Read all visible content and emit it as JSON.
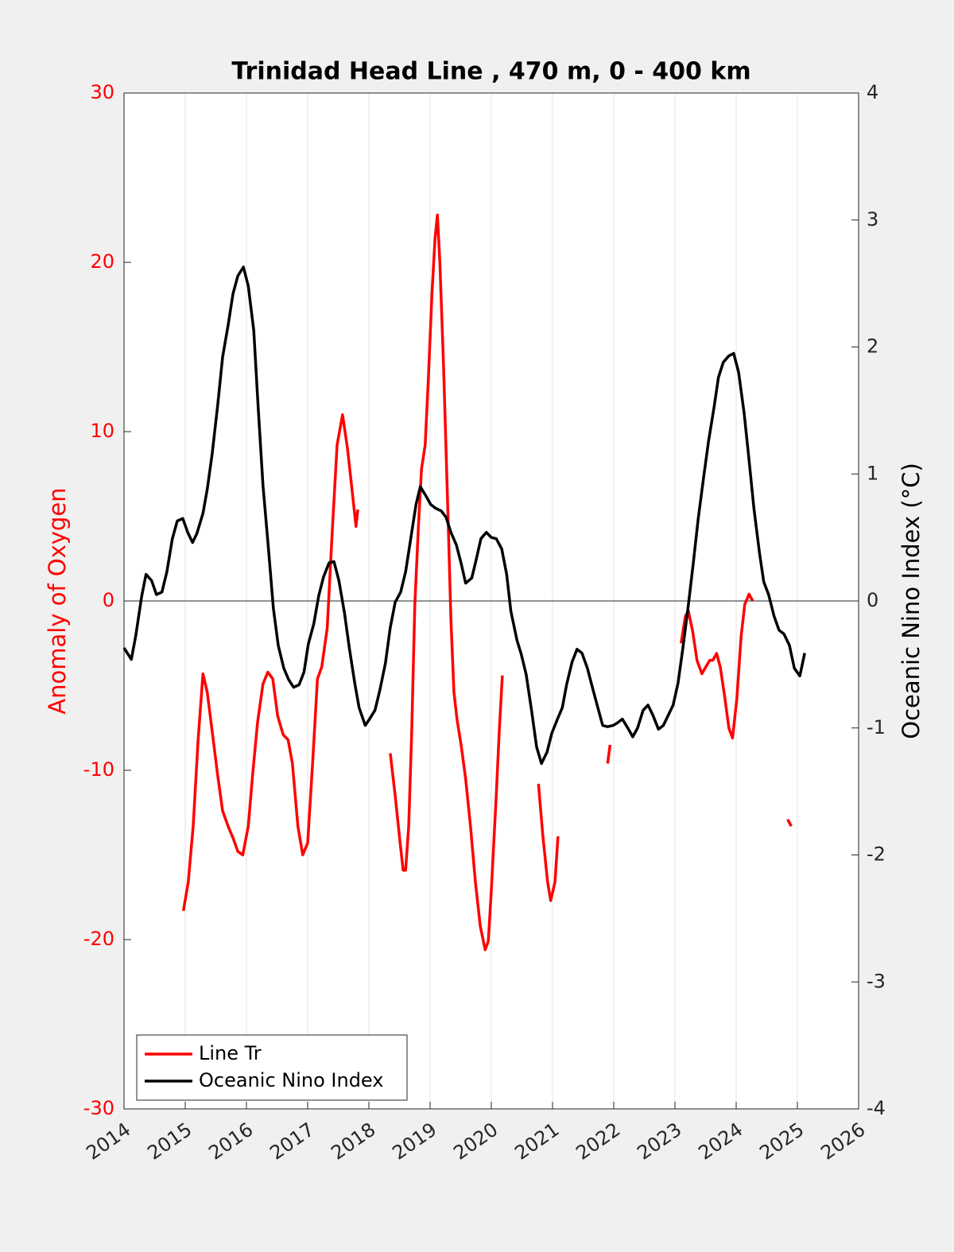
{
  "chart_data": {
    "type": "line",
    "title": "Trinidad Head Line , 470 m, 0 - 400 km",
    "ylabel": "Anomaly of Oxygen",
    "y2label": "Oceanic Nino Index (°C)",
    "xlim": [
      2014,
      2026
    ],
    "xticks": [
      2014,
      2015,
      2016,
      2017,
      2018,
      2019,
      2020,
      2021,
      2022,
      2023,
      2024,
      2025,
      2026
    ],
    "ylim": [
      -30,
      30
    ],
    "yticks": [
      -30,
      -20,
      -10,
      0,
      10,
      20,
      30
    ],
    "y2lim": [
      -4,
      4
    ],
    "y2ticks": [
      -4,
      -3,
      -2,
      -1,
      0,
      1,
      2,
      3,
      4
    ],
    "grid": true,
    "legend": "lower left",
    "series": [
      {
        "name": "Line Tr",
        "color": "#ff0000",
        "x": [
          2014.97,
          2015.05,
          2015.13,
          2015.21,
          2015.29,
          2015.36,
          2015.44,
          2015.53,
          2015.61,
          2015.7,
          2015.78,
          2015.86,
          2015.94,
          2016.03,
          2016.1,
          2016.18,
          2016.27,
          2016.35,
          2016.43,
          2016.51,
          2016.6,
          2016.68,
          2016.75,
          2016.84,
          2016.92,
          2017.0,
          2017.08,
          2017.16,
          2017.23,
          2017.32,
          2017.4,
          2017.48,
          2017.57,
          2017.65,
          2017.73,
          2017.79,
          2017.82,
          null,
          2018.35,
          2018.43,
          2018.51,
          2018.56,
          2018.6,
          2018.65,
          2018.7,
          2018.75,
          2018.81,
          2018.86,
          2018.92,
          2018.97,
          2019.03,
          2019.08,
          2019.12,
          2019.16,
          2019.22,
          2019.29,
          2019.34,
          2019.39,
          2019.44,
          2019.51,
          2019.58,
          2019.66,
          2019.74,
          2019.82,
          2019.9,
          2019.95,
          2020.0,
          2020.08,
          2020.13,
          2020.18,
          null,
          2020.77,
          2020.84,
          2020.92,
          2020.97,
          2021.04,
          2021.09,
          null,
          2021.9,
          2021.94,
          null,
          2023.1,
          2023.17,
          2023.22,
          2023.29,
          2023.36,
          2023.44,
          2023.52,
          2023.57,
          2023.62,
          2023.68,
          2023.74,
          2023.81,
          2023.88,
          2023.94,
          2024.01,
          2024.08,
          2024.14,
          2024.21,
          2024.27,
          null,
          2024.84,
          2024.9
        ],
        "values": [
          -18.3,
          -16.6,
          -13.3,
          -8.2,
          -4.3,
          -5.4,
          -7.7,
          -10.3,
          -12.4,
          -13.3,
          -14.0,
          -14.8,
          -15.0,
          -13.3,
          -10.3,
          -7.2,
          -4.9,
          -4.2,
          -4.6,
          -6.8,
          -7.9,
          -8.2,
          -9.6,
          -13.3,
          -15.0,
          -14.3,
          -9.6,
          -4.6,
          -3.9,
          -1.6,
          4.0,
          9.2,
          11.0,
          9.0,
          6.4,
          4.4,
          5.4,
          null,
          -9.0,
          -11.5,
          -14.3,
          -15.9,
          -15.9,
          -13.3,
          -7.7,
          -0.2,
          4.5,
          7.8,
          9.2,
          13.0,
          18.1,
          21.4,
          22.8,
          20.0,
          13.9,
          5.4,
          -1.1,
          -5.4,
          -7.0,
          -8.6,
          -10.5,
          -13.3,
          -16.6,
          -19.2,
          -20.6,
          -20.1,
          -17.1,
          -11.5,
          -7.7,
          -4.4,
          null,
          -10.8,
          -13.8,
          -16.6,
          -17.7,
          -16.6,
          -13.9,
          null,
          -9.6,
          -8.5,
          null,
          -2.5,
          -0.9,
          -0.6,
          -1.8,
          -3.5,
          -4.3,
          -3.8,
          -3.5,
          -3.5,
          -3.1,
          -3.9,
          -5.6,
          -7.5,
          -8.1,
          -5.8,
          -2.1,
          -0.2,
          0.4,
          0.0,
          null,
          -12.9,
          -13.3
        ]
      },
      {
        "name": "Oceanic Nino Index",
        "color": "#000000",
        "axis": "y2",
        "x": [
          2014.0,
          2014.12,
          2014.19,
          2014.29,
          2014.36,
          2014.45,
          2014.53,
          2014.62,
          2014.7,
          2014.79,
          2014.87,
          2014.96,
          2015.04,
          2015.12,
          2015.19,
          2015.29,
          2015.36,
          2015.44,
          2015.53,
          2015.61,
          2015.7,
          2015.78,
          2015.86,
          2015.95,
          2016.03,
          2016.12,
          2016.19,
          2016.27,
          2016.36,
          2016.44,
          2016.52,
          2016.61,
          2016.69,
          2016.77,
          2016.86,
          2016.94,
          2017.01,
          2017.1,
          2017.18,
          2017.26,
          2017.35,
          2017.43,
          2017.51,
          2017.6,
          2017.68,
          2017.77,
          2017.84,
          2017.94,
          2018.01,
          2018.1,
          2018.18,
          2018.27,
          2018.35,
          2018.43,
          2018.52,
          2018.6,
          2018.68,
          2018.77,
          2018.84,
          2018.94,
          2019.01,
          2019.09,
          2019.18,
          2019.26,
          2019.34,
          2019.43,
          2019.51,
          2019.58,
          2019.68,
          2019.75,
          2019.83,
          2019.92,
          2020.0,
          2020.08,
          2020.17,
          2020.25,
          2020.32,
          2020.42,
          2020.49,
          2020.57,
          2020.66,
          2020.74,
          2020.82,
          2020.91,
          2020.99,
          2021.08,
          2021.16,
          2021.23,
          2021.32,
          2021.4,
          2021.48,
          2021.57,
          2021.65,
          2021.74,
          2021.82,
          2021.9,
          2021.99,
          2022.06,
          2022.14,
          2022.23,
          2022.31,
          2022.39,
          2022.48,
          2022.56,
          2022.64,
          2022.73,
          2022.81,
          2022.88,
          2022.97,
          2023.05,
          2023.13,
          2023.22,
          2023.3,
          2023.38,
          2023.47,
          2023.55,
          2023.64,
          2023.71,
          2023.79,
          2023.88,
          2023.96,
          2024.04,
          2024.13,
          2024.21,
          2024.29,
          2024.38,
          2024.45,
          2024.53,
          2024.62,
          2024.7,
          2024.78,
          2024.87,
          2024.95,
          2025.04,
          2025.12
        ],
        "values": [
          -0.37,
          -0.46,
          -0.28,
          0.04,
          0.21,
          0.16,
          0.05,
          0.07,
          0.23,
          0.49,
          0.63,
          0.65,
          0.54,
          0.46,
          0.53,
          0.69,
          0.88,
          1.16,
          1.54,
          1.92,
          2.17,
          2.42,
          2.56,
          2.63,
          2.48,
          2.13,
          1.54,
          0.91,
          0.41,
          -0.06,
          -0.35,
          -0.53,
          -0.62,
          -0.68,
          -0.66,
          -0.56,
          -0.34,
          -0.18,
          0.04,
          0.19,
          0.3,
          0.31,
          0.16,
          -0.09,
          -0.37,
          -0.65,
          -0.84,
          -0.98,
          -0.93,
          -0.86,
          -0.7,
          -0.49,
          -0.21,
          -0.01,
          0.07,
          0.23,
          0.48,
          0.76,
          0.9,
          0.82,
          0.76,
          0.73,
          0.71,
          0.66,
          0.54,
          0.44,
          0.29,
          0.14,
          0.18,
          0.32,
          0.49,
          0.54,
          0.5,
          0.49,
          0.41,
          0.21,
          -0.08,
          -0.31,
          -0.42,
          -0.58,
          -0.87,
          -1.15,
          -1.28,
          -1.19,
          -1.04,
          -0.93,
          -0.84,
          -0.66,
          -0.48,
          -0.38,
          -0.41,
          -0.53,
          -0.68,
          -0.84,
          -0.98,
          -0.99,
          -0.98,
          -0.96,
          -0.93,
          -1.0,
          -1.07,
          -1.0,
          -0.86,
          -0.82,
          -0.9,
          -1.01,
          -0.98,
          -0.91,
          -0.82,
          -0.65,
          -0.37,
          -0.03,
          0.3,
          0.65,
          0.98,
          1.26,
          1.53,
          1.76,
          1.88,
          1.93,
          1.95,
          1.8,
          1.48,
          1.11,
          0.73,
          0.38,
          0.15,
          0.05,
          -0.12,
          -0.23,
          -0.26,
          -0.35,
          -0.53,
          -0.59,
          -0.41
        ]
      }
    ]
  }
}
